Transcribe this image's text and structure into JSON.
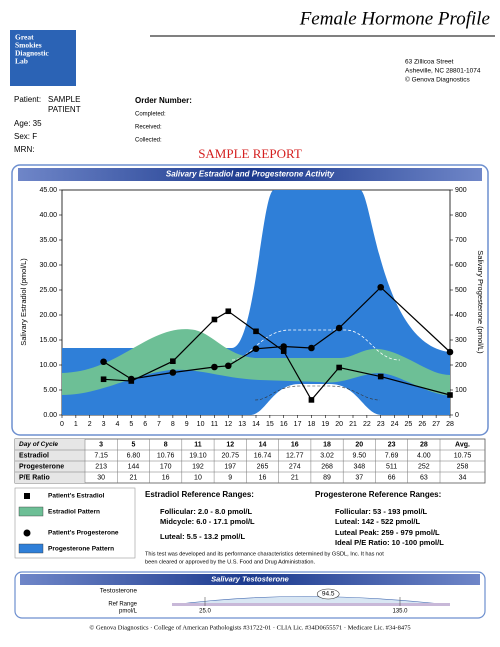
{
  "header": {
    "title": "Female Hormone Profile",
    "logo": [
      "Great",
      "Smokies",
      "Diagnostic",
      "Lab"
    ],
    "address": [
      "63 Zillicoa Street",
      "Asheville, NC  28801-1074",
      "© Genova Diagnostics"
    ]
  },
  "patient": {
    "patient_label": "Patient:",
    "name": [
      "SAMPLE",
      "PATIENT"
    ],
    "age": "Age: 35",
    "sex": "Sex: F",
    "mrn": "MRN:"
  },
  "order": {
    "title": "Order Number:",
    "fields": [
      "Completed:",
      "Received:",
      "Collected:"
    ]
  },
  "stamp": "SAMPLE REPORT",
  "chart_data": {
    "type": "line",
    "title": "Salivary Estradiol and Progesterone Activity",
    "y_label": "Salivary Estradiol (pmol/L)",
    "y2_label": "Salivary Progesterone (pmol/L)",
    "x": [
      3,
      5,
      8,
      11,
      12,
      14,
      16,
      18,
      20,
      23,
      28
    ],
    "xlim": [
      0,
      28
    ],
    "xticks": [
      0,
      1,
      2,
      3,
      4,
      5,
      6,
      7,
      8,
      9,
      10,
      11,
      12,
      13,
      14,
      15,
      16,
      17,
      18,
      19,
      20,
      21,
      22,
      23,
      24,
      25,
      26,
      27,
      28
    ],
    "ylim": [
      0,
      45
    ],
    "yticks": [
      {
        "value": 0,
        "label": "0.00"
      },
      {
        "value": 5,
        "label": "5.00"
      },
      {
        "value": 10,
        "label": "10.00"
      },
      {
        "value": 15,
        "label": "15.00"
      },
      {
        "value": 20,
        "label": "20.00"
      },
      {
        "value": 25,
        "label": "25.00"
      },
      {
        "value": 30,
        "label": "30.00"
      },
      {
        "value": 35,
        "label": "35.00"
      },
      {
        "value": 40,
        "label": "40.00"
      },
      {
        "value": 45,
        "label": "45.00"
      }
    ],
    "y2lim": [
      0,
      900
    ],
    "y2ticks": [
      0,
      100,
      200,
      300,
      400,
      500,
      600,
      700,
      800,
      900
    ],
    "series": [
      {
        "name": "Patient's Estradiol",
        "color": "#000000",
        "marker": "square",
        "values": [
          7.15,
          6.8,
          10.76,
          19.1,
          20.75,
          16.74,
          12.77,
          3.02,
          9.5,
          7.69,
          4.0
        ],
        "value_labels": [
          "7.15",
          "6.80",
          "10.76",
          "19.10",
          "20.75",
          "16.74",
          "12.77",
          "3.02",
          "9.50",
          "7.69",
          "4.00"
        ]
      },
      {
        "name": "Patient's Progesterone",
        "color": "#000000",
        "marker": "circle",
        "axis": "y2",
        "values": [
          213,
          144,
          170,
          192,
          197,
          265,
          274,
          268,
          348,
          511,
          252
        ]
      }
    ],
    "patterns": [
      {
        "name": "Estradiol Pattern",
        "color": "#6dbf96"
      },
      {
        "name": "Progesterone Pattern",
        "color": "#2f7fd8"
      }
    ]
  },
  "table": {
    "header": "Day of Cycle",
    "avg_header": "Avg.",
    "rows": [
      {
        "label": "Estradiol",
        "avg": 10.75
      },
      {
        "label": "Progesterone",
        "avg": 258
      },
      {
        "label": "P/E Ratio",
        "values": [
          30,
          21,
          16,
          10,
          9,
          16,
          21,
          89,
          37,
          66,
          63
        ],
        "avg": 34
      }
    ]
  },
  "reference": {
    "estradiol": {
      "title": "Estradiol Reference Ranges:",
      "lines": [
        "Follicular:  2.0 - 8.0 pmol/L",
        "Midcycle: 6.0 - 17.1 pmol/L",
        "Luteal:  5.5 - 13.2 pmol/L"
      ]
    },
    "progesterone": {
      "title": "Progesterone Reference Ranges:",
      "lines": [
        "Follicular:  53 - 193 pmol/L",
        "Luteal:  142 - 522 pmol/L",
        "Luteal Peak:  259 - 979 pmol/L",
        "Ideal P/E Ratio:  10 -100 pmol/L"
      ]
    }
  },
  "disclaimer": [
    "This test was developed and its performance characteristics determined by GSDL, Inc. It has not",
    "been cleared or approved by the U.S. Food and Drug Administration."
  ],
  "testosterone": {
    "title": "Salivary Testosterone",
    "label": "Testosterone",
    "range_label": [
      "Ref Range",
      "pmol/L"
    ],
    "value": 94.5,
    "ref_low": {
      "value": 25,
      "label": "25.0"
    },
    "ref_high": {
      "value": 135,
      "label": "135.0"
    }
  },
  "footer": "© Genova Diagnostics · College of American Pathologists #31722-01 · CLIA Lic. #34D0655571 · Medicare Lic. #34-8475"
}
